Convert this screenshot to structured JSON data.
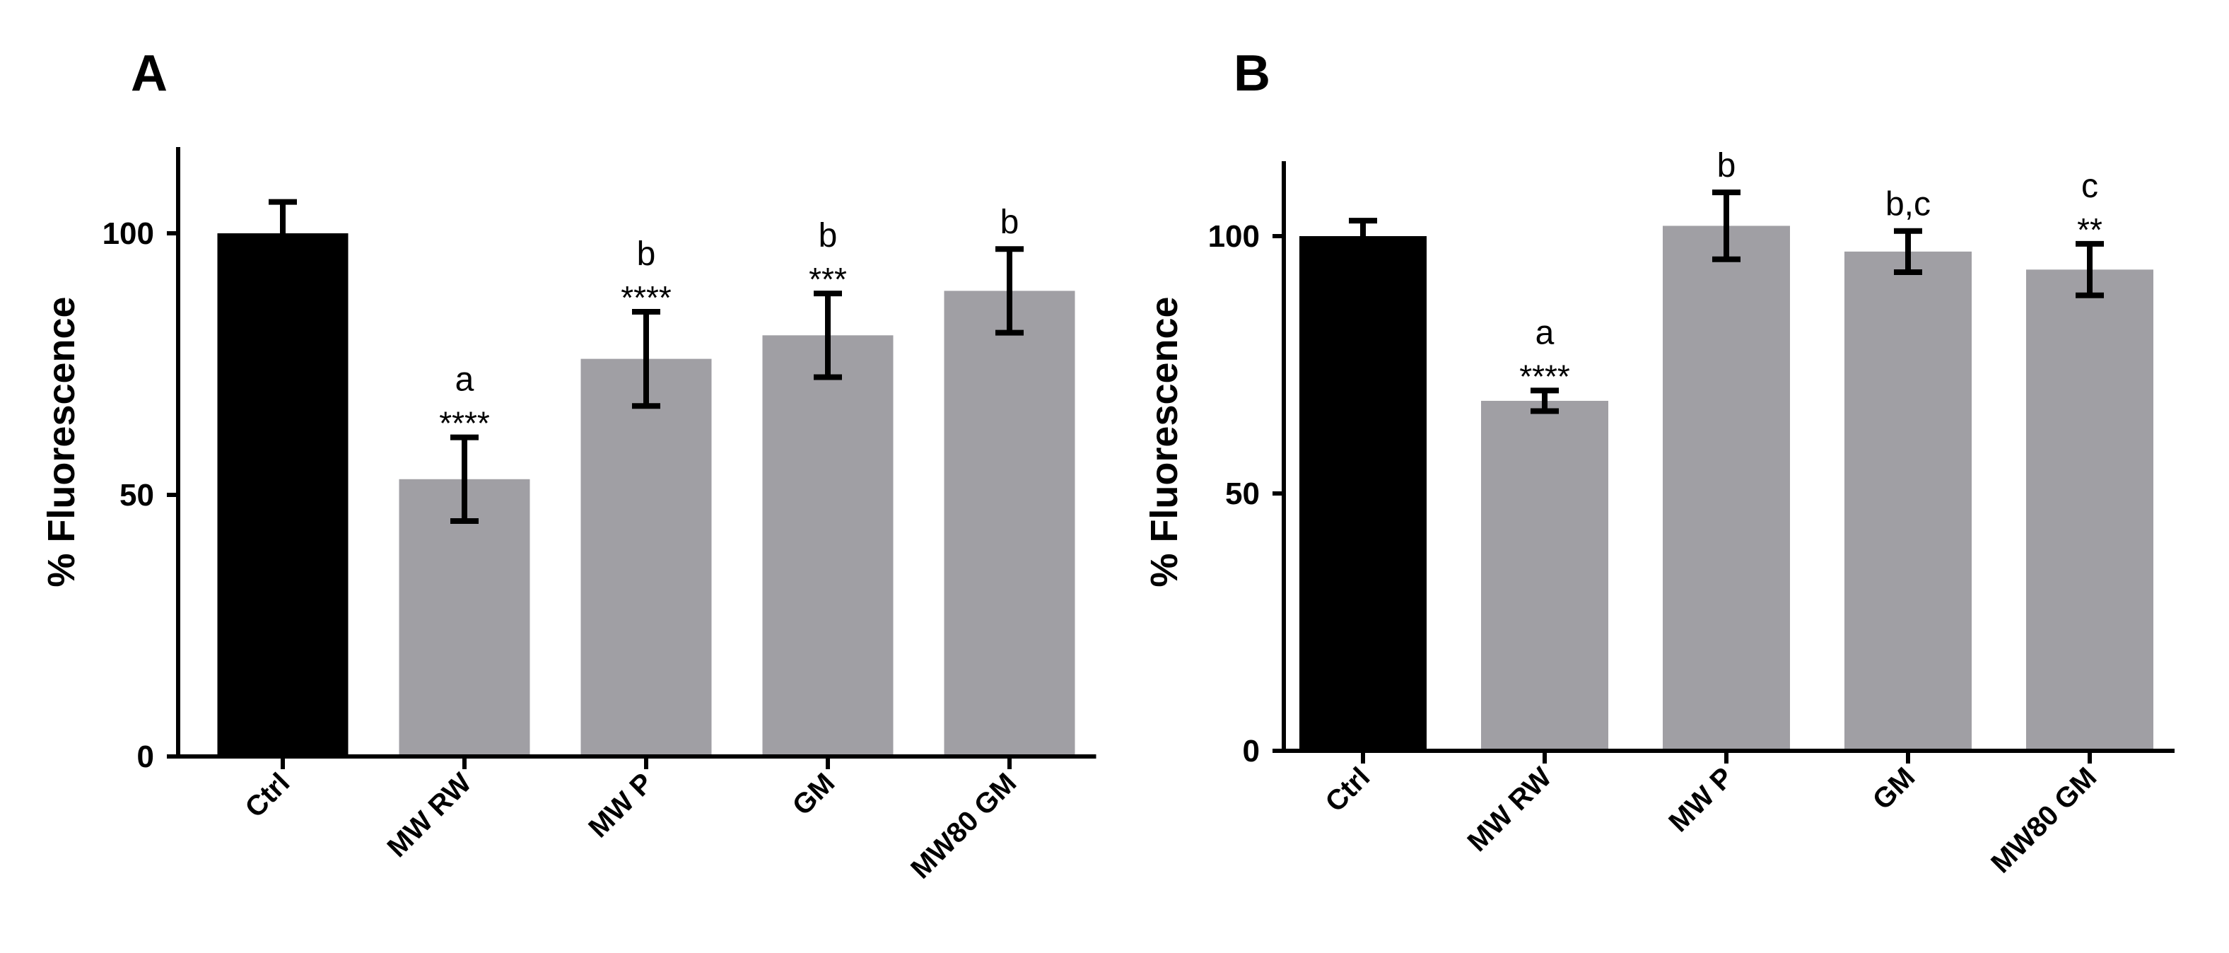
{
  "chart_data": [
    {
      "panel": "A",
      "type": "bar",
      "ylabel": "% Fluorescence",
      "xlabel": "",
      "ylim": [
        0,
        115
      ],
      "yticks": [
        0,
        50,
        100
      ],
      "categories": [
        "Ctrl",
        "MW RW",
        "MW P",
        "GM",
        "MW80 GM"
      ],
      "values": [
        100,
        53,
        76,
        80.5,
        89
      ],
      "errors": [
        6,
        8,
        9,
        8,
        8
      ],
      "letters": [
        "",
        "a",
        "b",
        "b",
        "b"
      ],
      "significance": [
        "",
        "****",
        "****",
        "***",
        ""
      ],
      "colors": [
        "#000000",
        "#a09fa4",
        "#a09fa4",
        "#a09fa4",
        "#a09fa4"
      ]
    },
    {
      "panel": "B",
      "type": "bar",
      "ylabel": "% Fluorescence",
      "xlabel": "",
      "ylim": [
        0,
        115
      ],
      "yticks": [
        0,
        50,
        100
      ],
      "categories": [
        "Ctrl",
        "MW RW",
        "MW P",
        "GM",
        "MW80 GM"
      ],
      "values": [
        100,
        68,
        102,
        97,
        93.5
      ],
      "errors": [
        3,
        2,
        6.5,
        4,
        5
      ],
      "letters": [
        "",
        "a",
        "b",
        "b,c",
        "c"
      ],
      "significance": [
        "",
        "****",
        "",
        "",
        "**"
      ],
      "colors": [
        "#000000",
        "#a09fa4",
        "#a09fa4",
        "#a09fa4",
        "#a09fa4"
      ]
    }
  ]
}
